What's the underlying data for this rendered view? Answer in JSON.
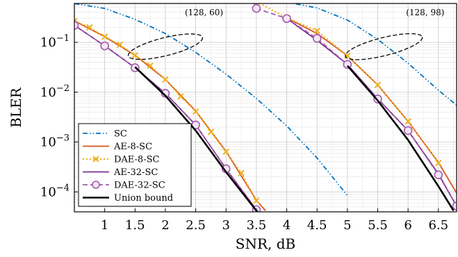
{
  "chart_data": {
    "type": "line",
    "xlabel": "SNR, dB",
    "ylabel": "BLER",
    "xlim": [
      0.5,
      6.8
    ],
    "ylim_log10": [
      -4.4,
      -0.22
    ],
    "y_scale": "log",
    "x_ticks": [
      "1",
      "1.5",
      "2",
      "2.5",
      "3",
      "3.5",
      "4",
      "4.5",
      "5",
      "5.5",
      "6",
      "6.5"
    ],
    "y_ticks": [
      {
        "base": "10",
        "exp": "−1",
        "value": 0.1
      },
      {
        "base": "10",
        "exp": "−2",
        "value": 0.01
      },
      {
        "base": "10",
        "exp": "−3",
        "value": 0.001
      },
      {
        "base": "10",
        "exp": "−4",
        "value": 0.0001
      }
    ],
    "grid": true,
    "legend_position": "bottom-left",
    "annotations": [
      {
        "text": "(128, 60)",
        "x": 2.0,
        "y": 0.06
      },
      {
        "text": "(128, 98)",
        "x": 5.6,
        "y": 0.06
      }
    ],
    "series": [
      {
        "name": "SC",
        "color": "#0072bd",
        "dash": "dashdotdot",
        "marker": "none",
        "groups": [
          [
            [
              0.5,
              0.6
            ],
            [
              1.0,
              0.48
            ],
            [
              1.5,
              0.29
            ],
            [
              2.0,
              0.15
            ],
            [
              2.5,
              0.063
            ],
            [
              3.0,
              0.023
            ],
            [
              3.5,
              0.0075
            ],
            [
              4.0,
              0.0021
            ],
            [
              4.5,
              0.00048
            ],
            [
              5.0,
              8.5e-05
            ]
          ],
          [
            [
              3.5,
              0.68
            ],
            [
              4.0,
              0.64
            ],
            [
              4.5,
              0.49
            ],
            [
              5.0,
              0.28
            ],
            [
              5.5,
              0.115
            ],
            [
              6.0,
              0.038
            ],
            [
              6.5,
              0.011
            ],
            [
              6.8,
              0.0055
            ]
          ]
        ]
      },
      {
        "name": "AE-8-SC",
        "color": "#d95319",
        "dash": "solid",
        "marker": "none",
        "groups": [
          [
            [
              0.5,
              0.27
            ],
            [
              1.0,
              0.13
            ],
            [
              1.5,
              0.055
            ],
            [
              2.0,
              0.018
            ],
            [
              2.5,
              0.0042
            ],
            [
              3.0,
              0.00065
            ],
            [
              3.5,
              6.8e-05
            ],
            [
              3.65,
              4.2e-05
            ]
          ],
          [
            [
              4.0,
              0.31
            ],
            [
              4.5,
              0.15
            ],
            [
              5.0,
              0.054
            ],
            [
              5.5,
              0.014
            ],
            [
              6.0,
              0.0026
            ],
            [
              6.5,
              0.00039
            ],
            [
              6.8,
              9.5e-05
            ]
          ]
        ]
      },
      {
        "name": "DAE-8-SC",
        "color": "#edb120",
        "dash": "dotted",
        "marker": "x",
        "groups": [
          [
            [
              0.5,
              0.27
            ],
            [
              0.75,
              0.2
            ],
            [
              1.0,
              0.13
            ],
            [
              1.25,
              0.09
            ],
            [
              1.5,
              0.055
            ],
            [
              1.75,
              0.034
            ],
            [
              2.0,
              0.018
            ],
            [
              2.25,
              0.0082
            ],
            [
              2.5,
              0.0041
            ],
            [
              2.75,
              0.0016
            ],
            [
              3.0,
              0.00064
            ],
            [
              3.25,
              0.00024
            ],
            [
              3.5,
              6.7e-05
            ]
          ],
          [
            [
              3.5,
              0.66
            ],
            [
              4.0,
              0.31
            ],
            [
              4.5,
              0.17
            ],
            [
              5.0,
              0.054
            ],
            [
              5.5,
              0.014
            ],
            [
              6.0,
              0.0026
            ],
            [
              6.5,
              0.00038
            ]
          ]
        ]
      },
      {
        "name": "AE-32-SC",
        "color": "#7e2f8e",
        "dash": "solid",
        "marker": "none",
        "groups": [
          [
            [
              0.5,
              0.22
            ],
            [
              1.0,
              0.085
            ],
            [
              1.5,
              0.031
            ],
            [
              2.0,
              0.0095
            ],
            [
              2.5,
              0.0022
            ],
            [
              3.0,
              0.00029
            ],
            [
              3.5,
              4.4e-05
            ],
            [
              3.55,
              4.2e-05
            ]
          ],
          [
            [
              4.0,
              0.3
            ],
            [
              4.5,
              0.11
            ],
            [
              5.0,
              0.036
            ],
            [
              5.5,
              0.0074
            ],
            [
              6.0,
              0.0017
            ],
            [
              6.5,
              0.00023
            ],
            [
              6.8,
              5.2e-05
            ]
          ]
        ]
      },
      {
        "name": "DAE-32-SC",
        "color": "#a45aac",
        "dash": "dashed",
        "marker": "circle",
        "groups": [
          [
            [
              0.5,
              0.22
            ],
            [
              1.0,
              0.085
            ],
            [
              1.5,
              0.031
            ],
            [
              2.0,
              0.0095
            ],
            [
              2.5,
              0.0022
            ],
            [
              3.0,
              0.00029
            ],
            [
              3.5,
              4.4e-05
            ]
          ],
          [
            [
              3.5,
              0.48
            ],
            [
              4.0,
              0.3
            ],
            [
              4.5,
              0.12
            ],
            [
              5.0,
              0.036
            ],
            [
              5.5,
              0.0073
            ],
            [
              6.0,
              0.0017
            ],
            [
              6.5,
              0.00022
            ],
            [
              6.8,
              5.2e-05
            ]
          ]
        ]
      },
      {
        "name": "Union bound",
        "color": "#000000",
        "dash": "solid",
        "marker": "none",
        "groups": [
          [
            [
              1.5,
              0.032
            ],
            [
              2.0,
              0.0085
            ],
            [
              2.5,
              0.0017
            ],
            [
              3.0,
              0.00025
            ],
            [
              3.5,
              4.2e-05
            ],
            [
              3.52,
              4e-05
            ]
          ],
          [
            [
              5.0,
              0.034
            ],
            [
              5.5,
              0.0068
            ],
            [
              6.0,
              0.0011
            ],
            [
              6.5,
              0.00013
            ],
            [
              6.75,
              4.2e-05
            ]
          ]
        ]
      }
    ]
  }
}
